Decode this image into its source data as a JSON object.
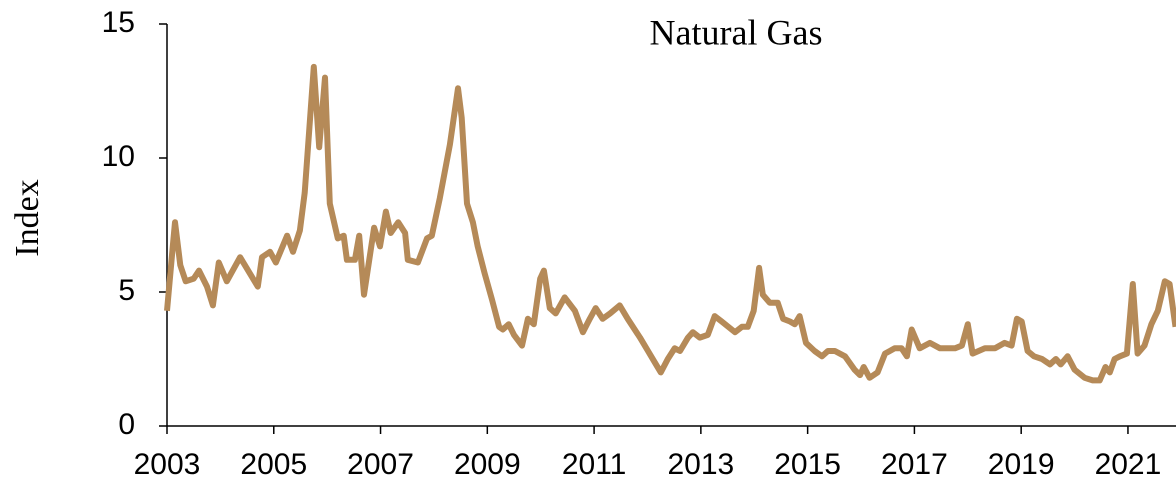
{
  "chart_data": {
    "type": "line",
    "title": "Natural Gas",
    "y_label": "Index",
    "color": "#b58a58",
    "x": [
      2003.0,
      2003.1,
      2003.15,
      2003.25,
      2003.35,
      2003.5,
      2003.6,
      2003.75,
      2003.86,
      2003.97,
      2004.12,
      2004.37,
      2004.7,
      2004.78,
      2004.93,
      2005.04,
      2005.25,
      2005.36,
      2005.49,
      2005.58,
      2005.75,
      2005.85,
      2005.96,
      2006.05,
      2006.2,
      2006.31,
      2006.37,
      2006.52,
      2006.6,
      2006.69,
      2006.88,
      2006.99,
      2007.1,
      2007.19,
      2007.33,
      2007.46,
      2007.51,
      2007.7,
      2007.87,
      2007.96,
      2008.11,
      2008.3,
      2008.45,
      2008.52,
      2008.62,
      2008.73,
      2008.82,
      2008.95,
      2009.09,
      2009.22,
      2009.29,
      2009.4,
      2009.5,
      2009.65,
      2009.76,
      2009.87,
      2009.99,
      2010.06,
      2010.17,
      2010.28,
      2010.45,
      2010.64,
      2010.79,
      2010.92,
      2011.03,
      2011.16,
      2011.3,
      2011.48,
      2011.63,
      2011.86,
      2012.01,
      2012.16,
      2012.25,
      2012.38,
      2012.51,
      2012.61,
      2012.76,
      2012.85,
      2012.98,
      2013.13,
      2013.26,
      2013.39,
      2013.64,
      2013.77,
      2013.88,
      2013.99,
      2014.09,
      2014.16,
      2014.29,
      2014.44,
      2014.54,
      2014.67,
      2014.76,
      2014.85,
      2014.97,
      2015.13,
      2015.27,
      2015.38,
      2015.51,
      2015.7,
      2015.88,
      2015.98,
      2016.05,
      2016.16,
      2016.31,
      2016.45,
      2016.63,
      2016.76,
      2016.86,
      2016.95,
      2017.1,
      2017.29,
      2017.48,
      2017.76,
      2017.89,
      2018.0,
      2018.09,
      2018.32,
      2018.51,
      2018.69,
      2018.82,
      2018.92,
      2019.01,
      2019.12,
      2019.24,
      2019.39,
      2019.54,
      2019.65,
      2019.74,
      2019.87,
      2020.0,
      2020.19,
      2020.34,
      2020.47,
      2020.58,
      2020.66,
      2020.75,
      2020.85,
      2020.98,
      2021.09,
      2021.18,
      2021.31,
      2021.44,
      2021.56,
      2021.69,
      2021.78,
      2021.89
    ],
    "values": [
      4.3,
      6.5,
      7.6,
      6.0,
      5.4,
      5.5,
      5.8,
      5.2,
      4.5,
      6.1,
      5.4,
      6.3,
      5.2,
      6.3,
      6.5,
      6.1,
      7.1,
      6.5,
      7.3,
      8.7,
      13.4,
      10.4,
      13.0,
      8.3,
      7.0,
      7.1,
      6.2,
      6.2,
      7.1,
      4.9,
      7.4,
      6.7,
      8.0,
      7.2,
      7.6,
      7.2,
      6.2,
      6.1,
      7.0,
      7.1,
      8.5,
      10.5,
      12.6,
      11.5,
      8.3,
      7.6,
      6.7,
      5.7,
      4.7,
      3.7,
      3.6,
      3.8,
      3.4,
      3.0,
      4.0,
      3.8,
      5.5,
      5.8,
      4.4,
      4.2,
      4.8,
      4.3,
      3.5,
      4.0,
      4.4,
      4.0,
      4.2,
      4.5,
      4.0,
      3.3,
      2.8,
      2.3,
      2.0,
      2.5,
      2.9,
      2.8,
      3.3,
      3.5,
      3.3,
      3.4,
      4.1,
      3.9,
      3.5,
      3.7,
      3.7,
      4.3,
      5.9,
      4.9,
      4.6,
      4.6,
      4.0,
      3.9,
      3.8,
      4.1,
      3.1,
      2.8,
      2.6,
      2.8,
      2.8,
      2.6,
      2.1,
      1.9,
      2.2,
      1.8,
      2.0,
      2.7,
      2.9,
      2.9,
      2.6,
      3.6,
      2.9,
      3.1,
      2.9,
      2.9,
      3.0,
      3.8,
      2.7,
      2.9,
      2.9,
      3.1,
      3.0,
      4.0,
      3.9,
      2.8,
      2.6,
      2.5,
      2.3,
      2.5,
      2.3,
      2.6,
      2.1,
      1.8,
      1.7,
      1.7,
      2.2,
      2.0,
      2.5,
      2.6,
      2.7,
      5.3,
      2.7,
      3.0,
      3.8,
      4.3,
      5.4,
      5.3,
      3.7
    ],
    "xlim": [
      2003,
      2021.9
    ],
    "xticks": [
      2003,
      2005,
      2007,
      2009,
      2011,
      2013,
      2015,
      2017,
      2019,
      2021
    ],
    "ylim": [
      0,
      15
    ],
    "yticks": [
      0,
      5,
      10,
      15
    ]
  }
}
